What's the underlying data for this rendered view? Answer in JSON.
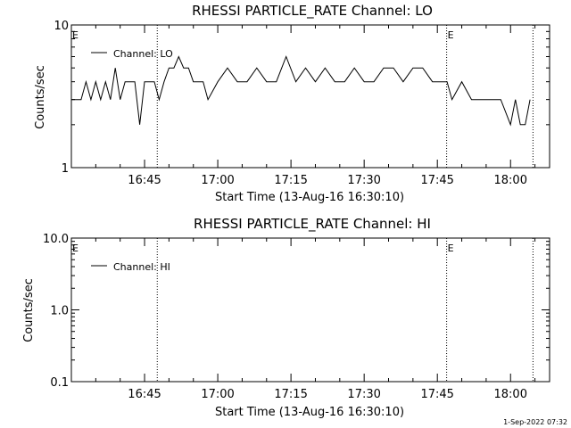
{
  "chart_data": [
    {
      "type": "line",
      "title": "RHESSI PARTICLE_RATE Channel: LO",
      "xlabel": "Start Time (13-Aug-16 16:30:10)",
      "ylabel": "Counts/sec",
      "yscale": "log",
      "ylim": [
        1,
        10
      ],
      "xlim_minutes": [
        0.0,
        98.0
      ],
      "xtick_minutes": [
        15,
        30,
        45,
        60,
        75,
        90
      ],
      "xticks": [
        "16:45",
        "17:00",
        "17:15",
        "17:30",
        "17:45",
        "18:00"
      ],
      "yticks": [
        "1",
        "10"
      ],
      "legend": "Channel: LO",
      "legend_position": "top-left",
      "markers": [
        {
          "minutes": 17.6,
          "label": ""
        },
        {
          "minutes": 76.9,
          "label": "E"
        },
        {
          "minutes": 94.6,
          "label": ""
        }
      ],
      "start_marker": "E",
      "series": [
        {
          "name": "Channel: LO",
          "x": [
            0,
            2,
            3,
            4,
            5,
            6,
            7,
            8,
            9,
            10,
            11,
            12,
            13,
            14,
            15,
            16,
            17,
            18,
            19,
            20,
            21,
            22,
            23,
            24,
            25,
            26,
            27,
            28,
            30,
            32,
            34,
            36,
            38,
            40,
            42,
            44,
            46,
            48,
            50,
            52,
            54,
            56,
            58,
            60,
            62,
            64,
            66,
            68,
            70,
            72,
            74,
            76,
            77,
            78,
            80,
            82,
            84,
            86,
            88,
            90,
            91,
            92,
            93,
            94
          ],
          "y": [
            3,
            3,
            4,
            3,
            4,
            3,
            4,
            3,
            5,
            3,
            4,
            4,
            4,
            2,
            4,
            4,
            4,
            3,
            4,
            5,
            5,
            6,
            5,
            5,
            4,
            4,
            4,
            3,
            4,
            5,
            4,
            4,
            5,
            4,
            4,
            6,
            4,
            5,
            4,
            5,
            4,
            4,
            5,
            4,
            4,
            5,
            5,
            4,
            5,
            5,
            4,
            4,
            4,
            3,
            4,
            3,
            3,
            3,
            3,
            2,
            3,
            2,
            2,
            3
          ]
        }
      ]
    },
    {
      "type": "line",
      "title": "RHESSI PARTICLE_RATE Channel: HI",
      "xlabel": "Start Time (13-Aug-16 16:30:10)",
      "ylabel": "Counts/sec",
      "yscale": "log",
      "ylim": [
        0.1,
        10.0
      ],
      "xlim_minutes": [
        0.0,
        98.0
      ],
      "xtick_minutes": [
        15,
        30,
        45,
        60,
        75,
        90
      ],
      "xticks": [
        "16:45",
        "17:00",
        "17:15",
        "17:30",
        "17:45",
        "18:00"
      ],
      "yticks": [
        "0.1",
        "1.0",
        "10.0"
      ],
      "legend": "Channel: HI",
      "legend_position": "top-left",
      "markers": [
        {
          "minutes": 17.6,
          "label": ""
        },
        {
          "minutes": 76.9,
          "label": "E"
        },
        {
          "minutes": 94.6,
          "label": ""
        }
      ],
      "start_marker": "E",
      "series": [
        {
          "name": "Channel: HI",
          "x": [],
          "y": []
        }
      ]
    }
  ],
  "footer_timestamp": "1-Sep-2022 07:32"
}
